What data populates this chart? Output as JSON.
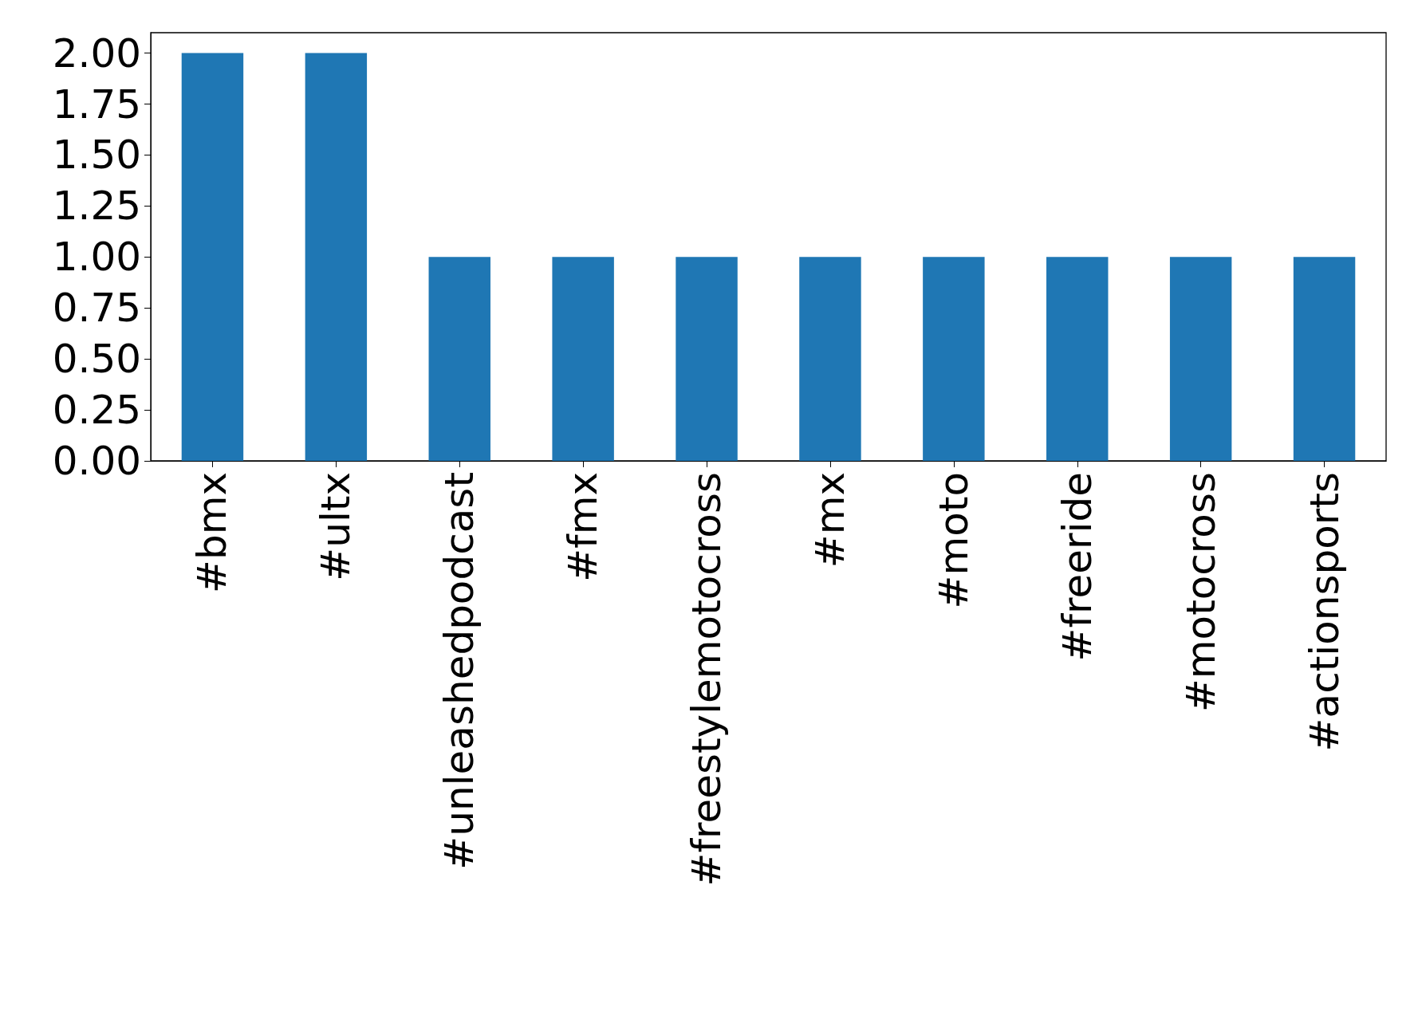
{
  "chart_data": {
    "type": "bar",
    "categories": [
      "#bmx",
      "#ultx",
      "#unleashedpodcast",
      "#fmx",
      "#freestylemotocross",
      "#mx",
      "#moto",
      "#freeride",
      "#motocross",
      "#actionsports"
    ],
    "values": [
      2,
      2,
      1,
      1,
      1,
      1,
      1,
      1,
      1,
      1
    ],
    "color": "#1f77b4",
    "ylim": [
      0,
      2.1
    ],
    "yticks": [
      {
        "value": 0,
        "label": "0.00"
      },
      {
        "value": 0.25,
        "label": "0.25"
      },
      {
        "value": 0.5,
        "label": "0.50"
      },
      {
        "value": 0.75,
        "label": "0.75"
      },
      {
        "value": 1,
        "label": "1.00"
      },
      {
        "value": 1.25,
        "label": "1.25"
      },
      {
        "value": 1.5,
        "label": "1.50"
      },
      {
        "value": 1.75,
        "label": "1.75"
      },
      {
        "value": 2,
        "label": "2.00"
      }
    ],
    "grid": false
  }
}
